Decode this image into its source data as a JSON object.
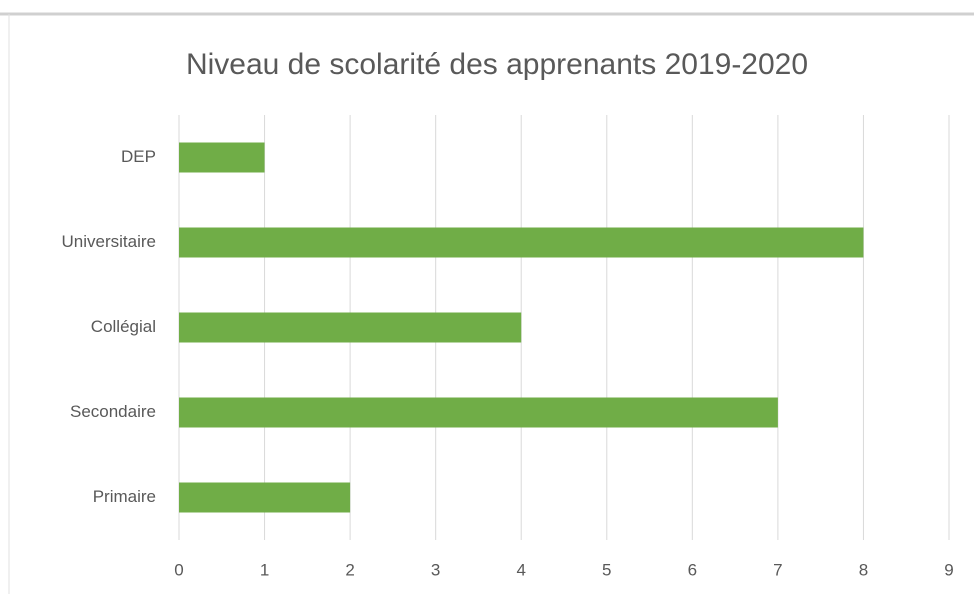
{
  "chart_data": {
    "type": "bar",
    "orientation": "horizontal",
    "title": "Niveau de scolarité des apprenants 2019-2020",
    "categories": [
      "DEP",
      "Universitaire",
      "Collégial",
      "Secondaire",
      "Primaire"
    ],
    "values": [
      1,
      8,
      4,
      7,
      2
    ],
    "color": "#70ad47",
    "xlim": [
      0,
      9
    ],
    "xticks": [
      0,
      1,
      2,
      3,
      4,
      5,
      6,
      7,
      8,
      9
    ],
    "grid": true
  }
}
